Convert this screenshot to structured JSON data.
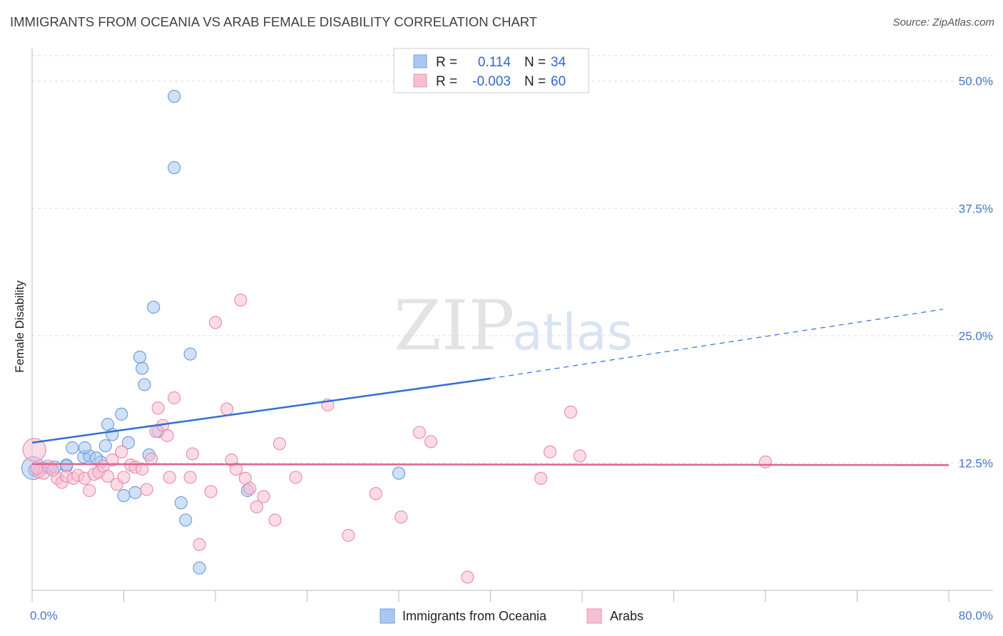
{
  "chart_data": {
    "type": "scatter",
    "title": "IMMIGRANTS FROM OCEANIA VS ARAB FEMALE DISABILITY CORRELATION CHART",
    "source": "Source: ZipAtlas.com",
    "watermark": {
      "zip": "ZIP",
      "atlas": "atlas"
    },
    "xlabel": "",
    "ylabel": "Female Disability",
    "xlim": [
      0,
      80
    ],
    "ylim": [
      0,
      52.5
    ],
    "x_tick_labels": {
      "min": "0.0%",
      "max": "80.0%"
    },
    "y_ticks": [
      {
        "value": 12.5,
        "label": "12.5%"
      },
      {
        "value": 25.0,
        "label": "25.0%"
      },
      {
        "value": 37.5,
        "label": "37.5%"
      },
      {
        "value": 50.0,
        "label": "50.0%"
      }
    ],
    "legend": {
      "r_label": "R =",
      "n_label": "N =",
      "entries": [
        {
          "r": "0.114",
          "n": "34",
          "color": "#a9c8f0",
          "stroke": "#6f9fe0"
        },
        {
          "r": "-0.003",
          "n": "60",
          "color": "#f7bfd2",
          "stroke": "#ec8fb0"
        }
      ]
    },
    "series": [
      {
        "name": "Immigrants from Oceania",
        "color": "#a9c8f0",
        "stroke": "#6f9fe0",
        "line_color": "#3070d0",
        "trend": {
          "x0": 0,
          "y0": 14.5,
          "x1": 40,
          "y1": 20.8,
          "x_dash_end": 79.5,
          "y_dash_end": 27.6
        },
        "points": [
          [
            0.2,
            11.8
          ],
          [
            1.0,
            12.0
          ],
          [
            1.6,
            12.0
          ],
          [
            2.0,
            12.1
          ],
          [
            3.0,
            12.2
          ],
          [
            3.5,
            14.0
          ],
          [
            3.0,
            12.3
          ],
          [
            4.5,
            13.1
          ],
          [
            5.0,
            13.2
          ],
          [
            6.0,
            12.6
          ],
          [
            4.6,
            14.0
          ],
          [
            5.6,
            13.0
          ],
          [
            6.4,
            14.2
          ],
          [
            6.6,
            16.3
          ],
          [
            7.0,
            15.3
          ],
          [
            7.8,
            17.3
          ],
          [
            8.4,
            14.5
          ],
          [
            8.0,
            9.3
          ],
          [
            9.0,
            9.6
          ],
          [
            9.6,
            21.8
          ],
          [
            9.4,
            22.9
          ],
          [
            9.8,
            20.2
          ],
          [
            10.2,
            13.3
          ],
          [
            11.0,
            15.6
          ],
          [
            10.6,
            27.8
          ],
          [
            12.4,
            48.5
          ],
          [
            12.4,
            41.5
          ],
          [
            13.0,
            8.6
          ],
          [
            13.4,
            6.9
          ],
          [
            13.8,
            23.2
          ],
          [
            14.6,
            2.2
          ],
          [
            18.8,
            9.8
          ],
          [
            32.0,
            11.5
          ],
          [
            0.1,
            12.0
          ]
        ]
      },
      {
        "name": "Arabs",
        "color": "#f7bfd2",
        "stroke": "#ec8fb0",
        "line_color": "#e0638e",
        "trend": {
          "x0": 0,
          "y0": 12.4,
          "x1": 80,
          "y1": 12.3
        },
        "points": [
          [
            0.2,
            13.8
          ],
          [
            0.6,
            11.6
          ],
          [
            1.0,
            11.5
          ],
          [
            1.4,
            12.2
          ],
          [
            2.2,
            11.0
          ],
          [
            2.6,
            10.6
          ],
          [
            3.0,
            11.2
          ],
          [
            3.6,
            11.0
          ],
          [
            4.0,
            11.3
          ],
          [
            4.6,
            11.0
          ],
          [
            5.0,
            9.8
          ],
          [
            5.4,
            11.4
          ],
          [
            5.8,
            11.6
          ],
          [
            6.2,
            12.2
          ],
          [
            6.6,
            11.2
          ],
          [
            7.0,
            12.8
          ],
          [
            7.4,
            10.4
          ],
          [
            7.8,
            13.6
          ],
          [
            8.0,
            11.1
          ],
          [
            8.6,
            12.3
          ],
          [
            9.0,
            12.1
          ],
          [
            9.6,
            11.9
          ],
          [
            10.0,
            9.9
          ],
          [
            10.4,
            12.9
          ],
          [
            10.8,
            15.6
          ],
          [
            11.0,
            17.9
          ],
          [
            11.4,
            16.2
          ],
          [
            11.8,
            15.2
          ],
          [
            12.0,
            11.1
          ],
          [
            12.4,
            18.9
          ],
          [
            13.8,
            11.1
          ],
          [
            14.0,
            13.4
          ],
          [
            14.6,
            4.5
          ],
          [
            15.6,
            9.7
          ],
          [
            16.0,
            26.3
          ],
          [
            17.0,
            17.8
          ],
          [
            17.4,
            12.8
          ],
          [
            17.8,
            11.9
          ],
          [
            18.2,
            28.5
          ],
          [
            18.6,
            11.0
          ],
          [
            19.0,
            10.0
          ],
          [
            19.6,
            8.2
          ],
          [
            20.2,
            9.2
          ],
          [
            21.2,
            6.9
          ],
          [
            21.6,
            14.4
          ],
          [
            23.0,
            11.1
          ],
          [
            25.8,
            18.2
          ],
          [
            27.6,
            5.4
          ],
          [
            30.0,
            9.5
          ],
          [
            32.2,
            7.2
          ],
          [
            33.8,
            15.5
          ],
          [
            34.8,
            14.6
          ],
          [
            38.0,
            1.3
          ],
          [
            44.4,
            11.0
          ],
          [
            45.2,
            13.6
          ],
          [
            47.8,
            13.2
          ],
          [
            47.0,
            17.5
          ],
          [
            64.0,
            12.6
          ],
          [
            0.4,
            12.0
          ],
          [
            1.8,
            11.8
          ]
        ]
      }
    ]
  }
}
